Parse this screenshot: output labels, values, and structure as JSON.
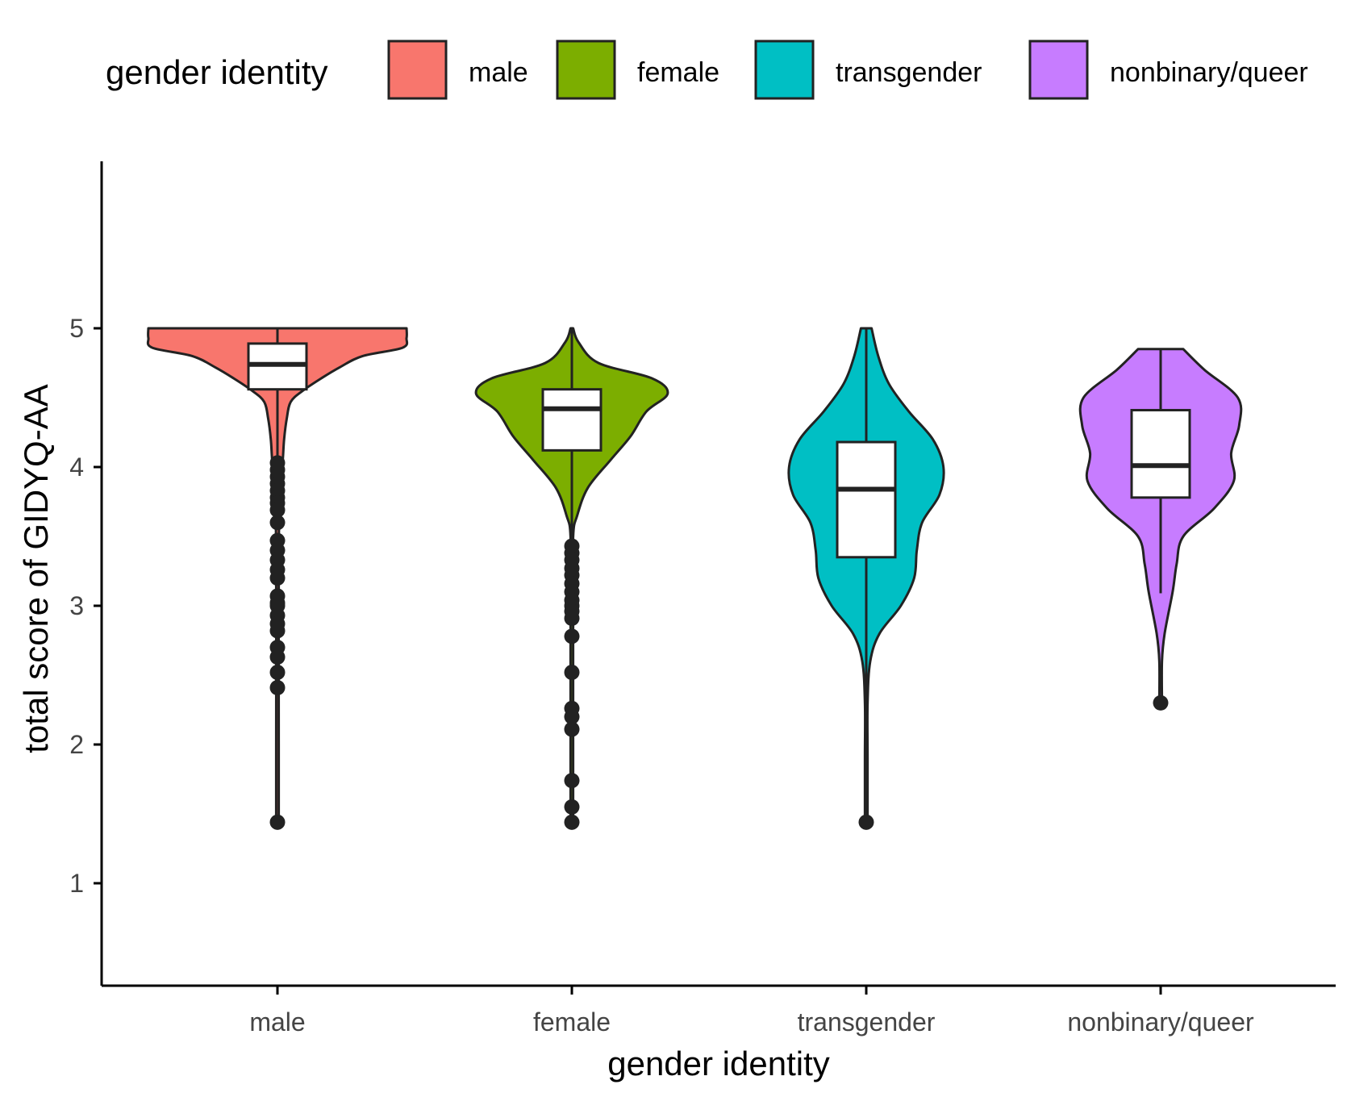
{
  "chart_data": {
    "type": "violin",
    "xlabel": "gender identity",
    "ylabel": "total score of GIDYQ-AA",
    "ylim": [
      0.3,
      6.2
    ],
    "yticks": [
      "1",
      "2",
      "3",
      "4",
      "5"
    ],
    "legend": {
      "title": "gender identity",
      "position": "top"
    },
    "grid": false,
    "categories": [
      "male",
      "female",
      "transgender",
      "nonbinary/queer"
    ],
    "colors": [
      "#F8766D",
      "#7CAE00",
      "#00BFC4",
      "#C77CFF"
    ],
    "groups": [
      {
        "name": "male",
        "box": {
          "q1": 4.56,
          "median": 4.74,
          "q3": 4.89,
          "whisker_low": 4.07,
          "whisker_high": 5.0
        },
        "outliers": [
          4.03,
          3.98,
          3.93,
          3.88,
          3.83,
          3.78,
          3.74,
          3.69,
          3.6,
          3.47,
          3.4,
          3.33,
          3.26,
          3.2,
          3.07,
          3.02,
          3.0,
          2.93,
          2.87,
          2.82,
          2.7,
          2.63,
          2.52,
          2.41,
          1.44
        ],
        "density": [
          [
            5.0,
            0.97
          ],
          [
            4.93,
            0.97
          ],
          [
            4.86,
            0.94
          ],
          [
            4.8,
            0.64
          ],
          [
            4.72,
            0.47
          ],
          [
            4.64,
            0.33
          ],
          [
            4.55,
            0.19
          ],
          [
            4.47,
            0.1
          ],
          [
            4.35,
            0.07
          ],
          [
            4.2,
            0.05
          ],
          [
            4.05,
            0.04
          ],
          [
            3.8,
            0.02
          ],
          [
            3.4,
            0.01
          ],
          [
            2.0,
            0.0
          ],
          [
            1.44,
            0.0
          ]
        ]
      },
      {
        "name": "female",
        "box": {
          "q1": 4.12,
          "median": 4.42,
          "q3": 4.56,
          "whisker_low": 3.45,
          "whisker_high": 5.0
        },
        "outliers": [
          3.43,
          3.38,
          3.33,
          3.27,
          3.22,
          3.16,
          3.1,
          3.04,
          3.0,
          2.96,
          2.91,
          2.78,
          2.52,
          2.26,
          2.2,
          2.11,
          1.74,
          1.55,
          1.44
        ],
        "density": [
          [
            5.0,
            0.0
          ],
          [
            4.9,
            0.05
          ],
          [
            4.75,
            0.2
          ],
          [
            4.64,
            0.6
          ],
          [
            4.53,
            0.72
          ],
          [
            4.4,
            0.56
          ],
          [
            4.22,
            0.44
          ],
          [
            4.05,
            0.29
          ],
          [
            3.85,
            0.12
          ],
          [
            3.65,
            0.04
          ],
          [
            3.5,
            0.01
          ],
          [
            3.0,
            0.0
          ],
          [
            1.44,
            0.0
          ]
        ]
      },
      {
        "name": "transgender",
        "box": {
          "q1": 3.35,
          "median": 3.84,
          "q3": 4.18,
          "whisker_low": 1.47,
          "whisker_high": 5.0
        },
        "outliers": [
          1.44
        ],
        "density": [
          [
            5.0,
            0.04
          ],
          [
            4.8,
            0.09
          ],
          [
            4.6,
            0.17
          ],
          [
            4.4,
            0.32
          ],
          [
            4.2,
            0.5
          ],
          [
            4.0,
            0.58
          ],
          [
            3.8,
            0.55
          ],
          [
            3.6,
            0.42
          ],
          [
            3.4,
            0.38
          ],
          [
            3.2,
            0.36
          ],
          [
            3.0,
            0.26
          ],
          [
            2.8,
            0.1
          ],
          [
            2.6,
            0.03
          ],
          [
            2.3,
            0.01
          ],
          [
            1.9,
            0.01
          ],
          [
            1.44,
            0.01
          ]
        ]
      },
      {
        "name": "nonbinary/queer",
        "box": {
          "q1": 3.78,
          "median": 4.01,
          "q3": 4.41,
          "whisker_low": 3.09,
          "whisker_high": 4.85
        },
        "outliers": [
          2.3
        ],
        "density": [
          [
            4.85,
            0.17
          ],
          [
            4.7,
            0.33
          ],
          [
            4.5,
            0.58
          ],
          [
            4.3,
            0.59
          ],
          [
            4.1,
            0.53
          ],
          [
            3.9,
            0.55
          ],
          [
            3.7,
            0.4
          ],
          [
            3.5,
            0.17
          ],
          [
            3.3,
            0.12
          ],
          [
            3.1,
            0.09
          ],
          [
            2.8,
            0.03
          ],
          [
            2.6,
            0.01
          ],
          [
            2.3,
            0.01
          ]
        ]
      }
    ]
  }
}
